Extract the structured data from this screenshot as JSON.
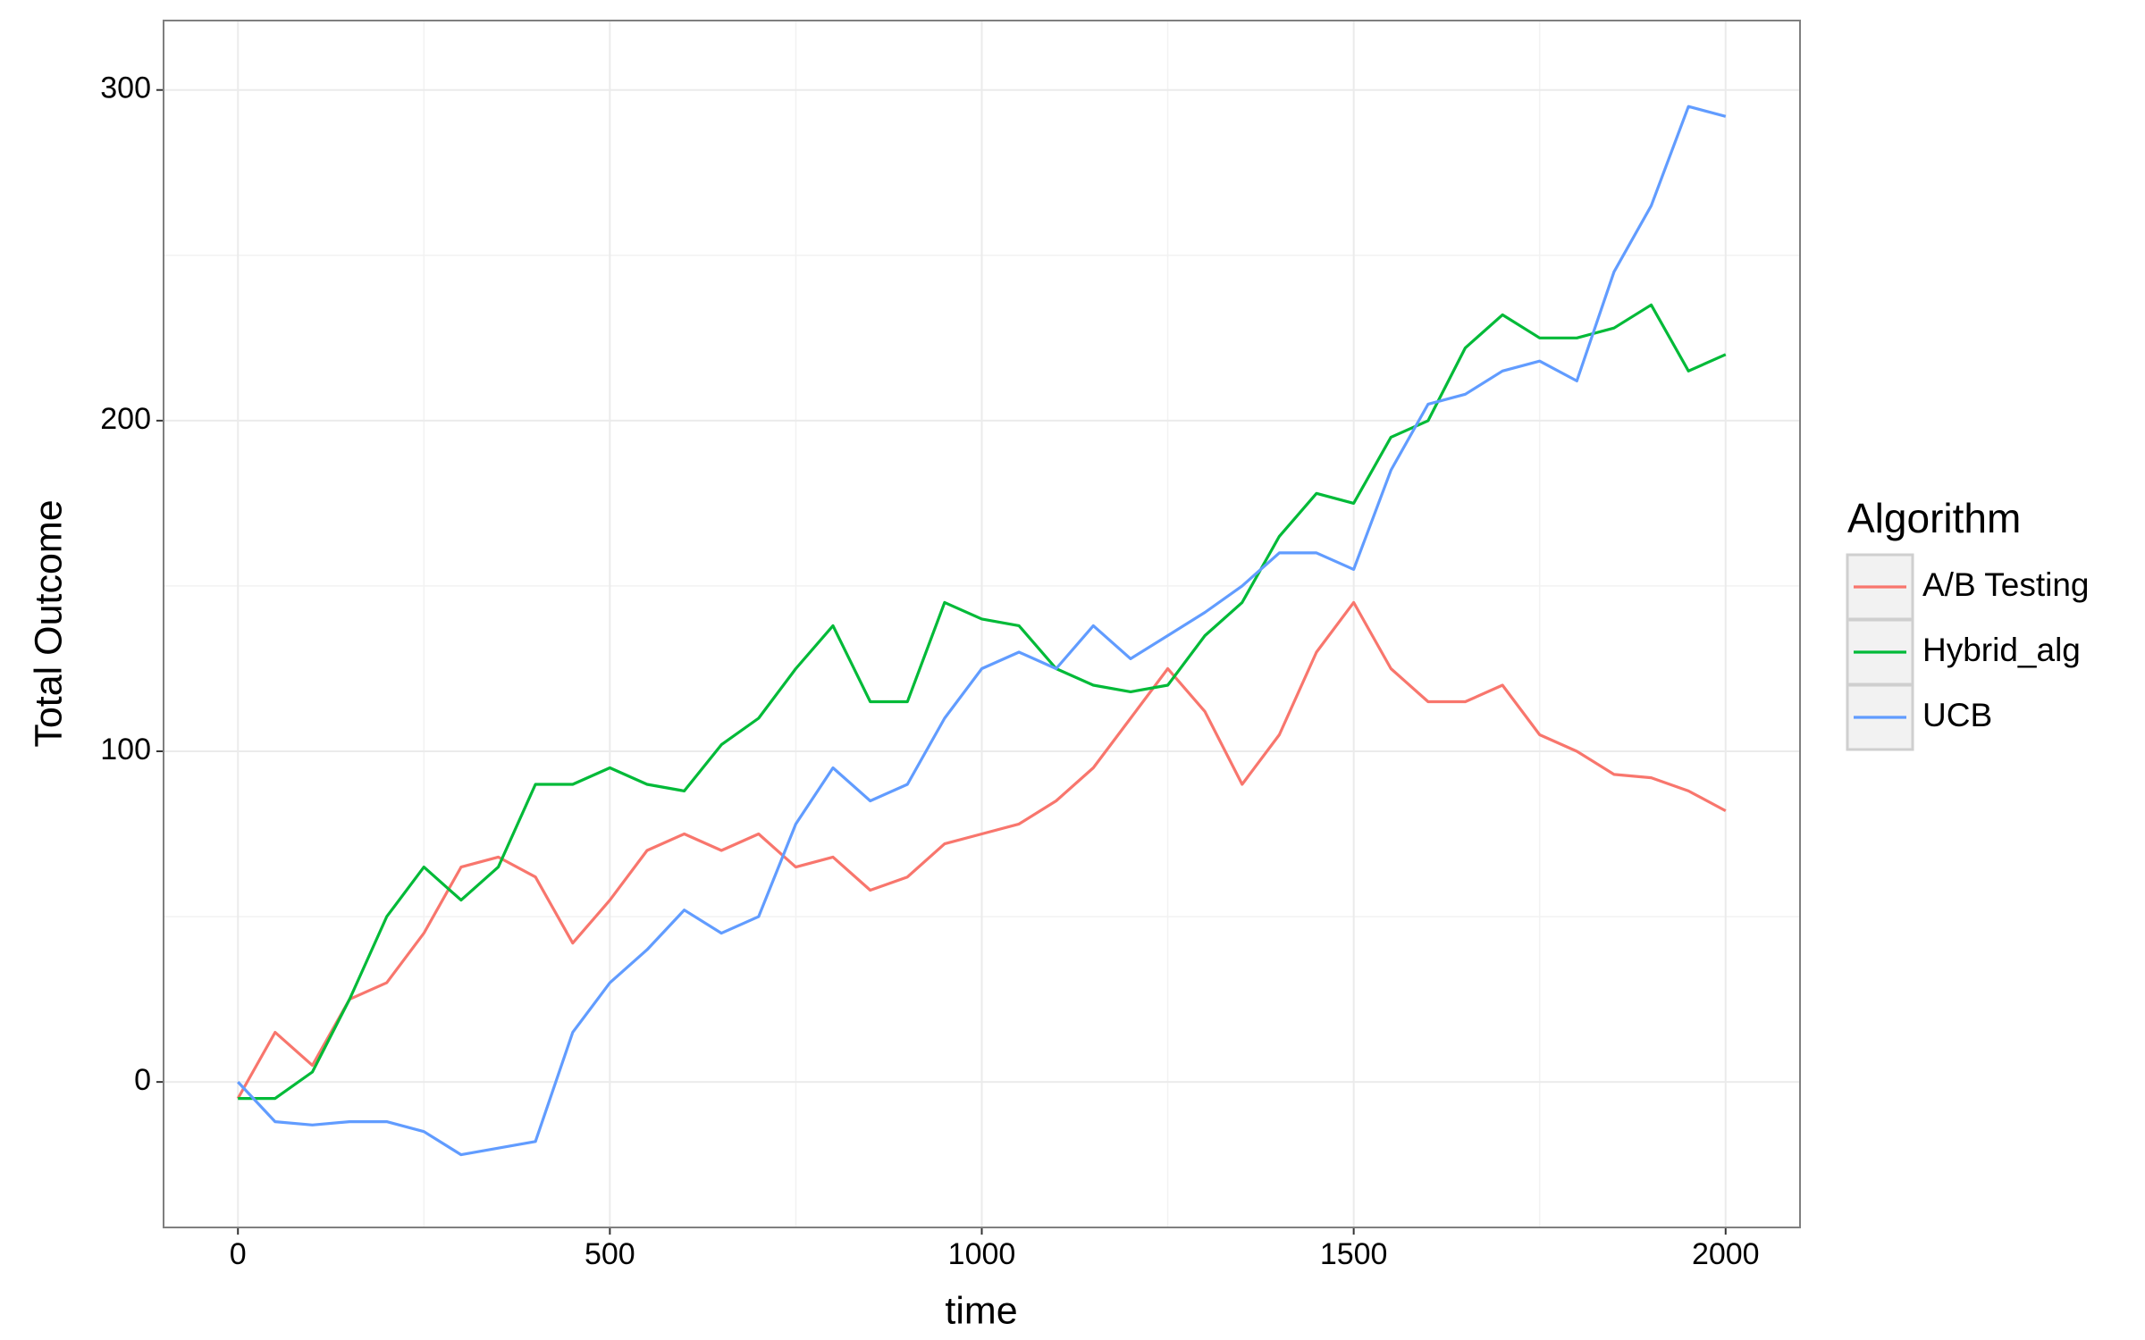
{
  "chart_data": {
    "type": "line",
    "x_label": "time",
    "y_label": "Total Outcome",
    "legend_title": "Algorithm",
    "legend_position": "right",
    "grid": true,
    "xlim": [
      -100,
      2100
    ],
    "ylim": [
      -44,
      321
    ],
    "xticks": [
      0,
      500,
      1000,
      1500,
      2000
    ],
    "yticks": [
      0,
      100,
      200,
      300
    ],
    "x": [
      0,
      50,
      100,
      150,
      200,
      250,
      300,
      350,
      400,
      450,
      500,
      550,
      600,
      650,
      700,
      750,
      800,
      850,
      900,
      950,
      1000,
      1050,
      1100,
      1150,
      1200,
      1250,
      1300,
      1350,
      1400,
      1450,
      1500,
      1550,
      1600,
      1650,
      1700,
      1750,
      1800,
      1850,
      1900,
      1950,
      2000
    ],
    "series": [
      {
        "name": "A/B Testing",
        "color": "#f8766d",
        "values": [
          -5,
          15,
          5,
          25,
          30,
          45,
          65,
          68,
          62,
          42,
          55,
          70,
          75,
          70,
          75,
          65,
          68,
          58,
          62,
          72,
          75,
          78,
          85,
          95,
          110,
          125,
          112,
          90,
          105,
          130,
          145,
          125,
          115,
          115,
          120,
          105,
          100,
          93,
          92,
          88,
          82
        ]
      },
      {
        "name": "Hybrid_alg",
        "color": "#00ba38",
        "values": [
          -5,
          -5,
          3,
          25,
          50,
          65,
          55,
          65,
          90,
          90,
          95,
          90,
          88,
          102,
          110,
          125,
          138,
          115,
          115,
          145,
          140,
          138,
          125,
          120,
          118,
          120,
          135,
          145,
          165,
          178,
          175,
          195,
          200,
          222,
          232,
          225,
          225,
          228,
          235,
          215,
          220
        ]
      },
      {
        "name": "UCB",
        "color": "#619cff",
        "values": [
          0,
          -12,
          -13,
          -12,
          -12,
          -15,
          -22,
          -20,
          -18,
          15,
          30,
          40,
          52,
          45,
          50,
          78,
          95,
          85,
          90,
          110,
          125,
          130,
          125,
          138,
          128,
          135,
          142,
          150,
          160,
          160,
          155,
          185,
          205,
          208,
          215,
          218,
          212,
          245,
          265,
          295,
          292
        ]
      }
    ]
  }
}
